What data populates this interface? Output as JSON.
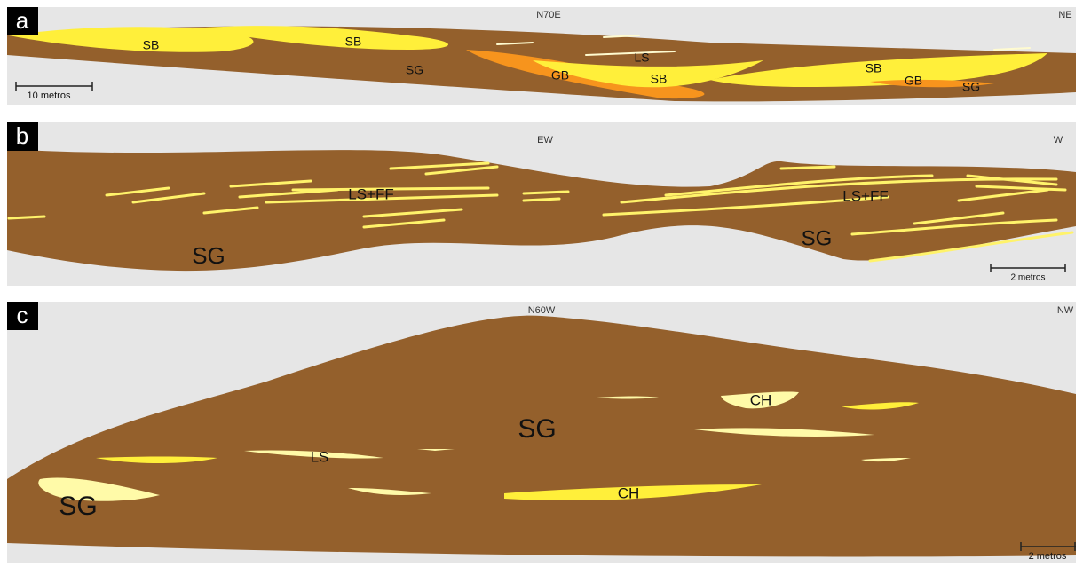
{
  "panels": [
    {
      "label": "a",
      "heading": "N70E",
      "end": "NE",
      "units": [
        "SB",
        "SB",
        "SG",
        "LS",
        "GB",
        "SB",
        "SB",
        "GB",
        "SG"
      ],
      "scale": "10 metros"
    },
    {
      "label": "b",
      "heading": "EW",
      "end": "W",
      "units": [
        "LS+FF",
        "LS+FF",
        "SG",
        "SG"
      ],
      "scale": "2 metros"
    },
    {
      "label": "c",
      "heading": "N60W",
      "end": "NW",
      "units": [
        "CH",
        "SG",
        "LS",
        "SG",
        "CH"
      ],
      "scale": "2 metros"
    }
  ]
}
